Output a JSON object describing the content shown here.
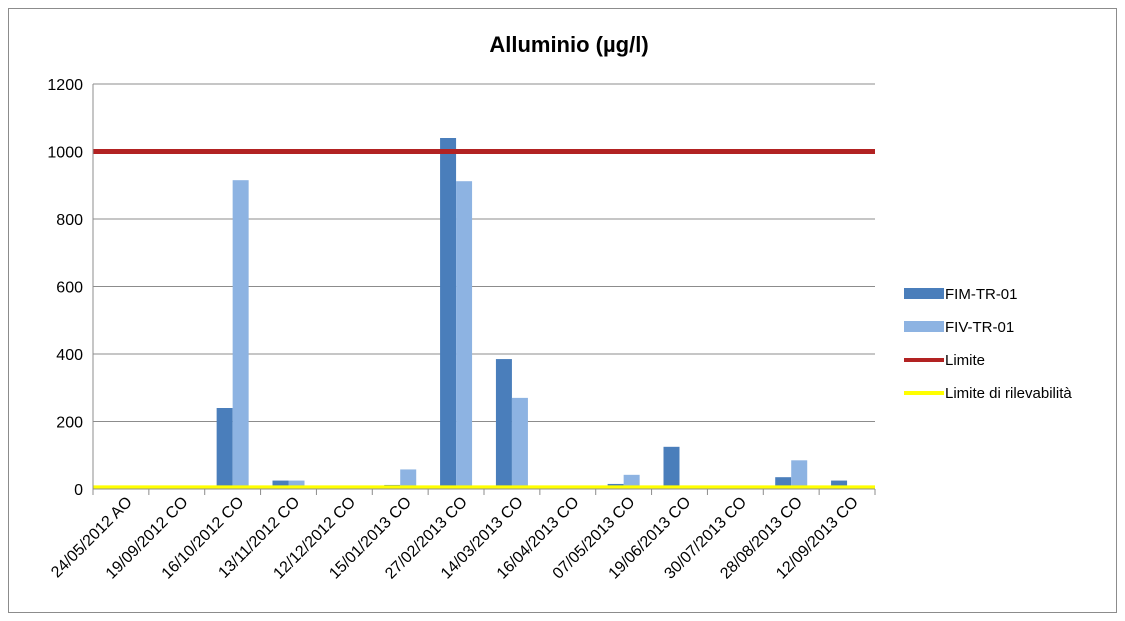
{
  "chart_data": {
    "type": "bar",
    "title": "Alluminio  (µg/l)",
    "xlabel": "",
    "ylabel": "",
    "ylim": [
      0,
      1200
    ],
    "yticks": [
      "0",
      "200",
      "400",
      "600",
      "800",
      "1000",
      "1200"
    ],
    "grid": true,
    "legend_position": "right",
    "categories": [
      "24/05/2012 AO",
      "19/09/2012 CO",
      "16/10/2012 CO",
      "13/11/2012 CO",
      "12/12/2012 CO",
      "15/01/2013 CO",
      "27/02/2013 CO",
      "14/03/2013 CO",
      "16/04/2013 CO",
      "07/05/2013 CO",
      "19/06/2013 CO",
      "30/07/2013 CO",
      "28/08/2013 CO",
      "12/09/2013 CO"
    ],
    "series": [
      {
        "name": "FIM-TR-01",
        "type": "bar",
        "color": "#4a7ebb",
        "values": [
          0,
          0,
          240,
          25,
          0,
          12,
          1040,
          385,
          0,
          15,
          125,
          8,
          35,
          25
        ]
      },
      {
        "name": "FIV-TR-01",
        "type": "bar",
        "color": "#8db3e2",
        "values": [
          0,
          0,
          915,
          25,
          0,
          58,
          912,
          270,
          0,
          42,
          10,
          5,
          85,
          8
        ]
      },
      {
        "name": "Limite",
        "type": "line",
        "color": "#b22222",
        "value": 1000
      },
      {
        "name": "Limite di rilevabilità",
        "type": "line",
        "color": "#ffff00",
        "value": 5
      }
    ]
  }
}
